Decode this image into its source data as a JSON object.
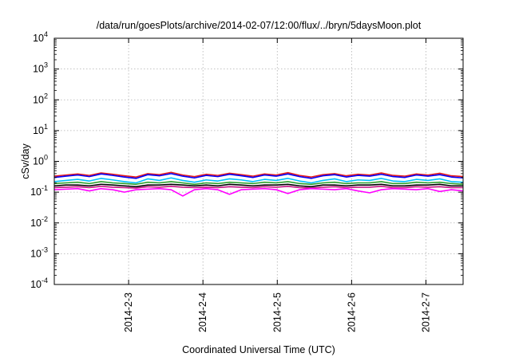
{
  "chart_data": {
    "type": "line",
    "title": "/data/run/goesPlots/archive/2014-02-07/12:00/flux/../bryn/5daysMoon.plot",
    "xlabel": "Coordinated Universal Time (UTC)",
    "ylabel": "cSv/day",
    "yscale": "log",
    "ylim": [
      0.0001,
      10000
    ],
    "yticks": [
      {
        "base": "10",
        "exp": "-4",
        "value": 0.0001
      },
      {
        "base": "10",
        "exp": "-3",
        "value": 0.001
      },
      {
        "base": "10",
        "exp": "-2",
        "value": 0.01
      },
      {
        "base": "10",
        "exp": "-1",
        "value": 0.1
      },
      {
        "base": "10",
        "exp": "0",
        "value": 1
      },
      {
        "base": "10",
        "exp": "1",
        "value": 10
      },
      {
        "base": "10",
        "exp": "2",
        "value": 100
      },
      {
        "base": "10",
        "exp": "3",
        "value": 1000
      },
      {
        "base": "10",
        "exp": "4",
        "value": 10000
      }
    ],
    "xlim": [
      "2014-02-02T00:00",
      "2014-02-07T12:00"
    ],
    "xticks": [
      {
        "label": "2014-2-3",
        "t": "2014-02-03T00:00"
      },
      {
        "label": "2014-2-4",
        "t": "2014-02-04T00:00"
      },
      {
        "label": "2014-2-5",
        "t": "2014-02-05T00:00"
      },
      {
        "label": "2014-2-6",
        "t": "2014-02-06T00:00"
      },
      {
        "label": "2014-2-7",
        "t": "2014-02-07T00:00"
      }
    ],
    "grid": true,
    "series": [
      {
        "color": "#e41a1c",
        "values": [
          0.33,
          0.36,
          0.39,
          0.35,
          0.42,
          0.38,
          0.34,
          0.31,
          0.4,
          0.37,
          0.44,
          0.36,
          0.32,
          0.38,
          0.35,
          0.41,
          0.37,
          0.33,
          0.39,
          0.36,
          0.43,
          0.35,
          0.31,
          0.37,
          0.4,
          0.34,
          0.38,
          0.36,
          0.42,
          0.35,
          0.33,
          0.39,
          0.36,
          0.41,
          0.34,
          0.32
        ]
      },
      {
        "color": "#0000ff",
        "values": [
          0.3,
          0.33,
          0.36,
          0.32,
          0.39,
          0.35,
          0.31,
          0.28,
          0.37,
          0.34,
          0.4,
          0.33,
          0.29,
          0.35,
          0.32,
          0.38,
          0.34,
          0.3,
          0.36,
          0.33,
          0.39,
          0.32,
          0.28,
          0.34,
          0.37,
          0.31,
          0.35,
          0.33,
          0.38,
          0.32,
          0.3,
          0.36,
          0.33,
          0.37,
          0.31,
          0.29
        ]
      },
      {
        "color": "#00bfff",
        "values": [
          0.22,
          0.24,
          0.26,
          0.23,
          0.28,
          0.25,
          0.22,
          0.2,
          0.27,
          0.24,
          0.29,
          0.24,
          0.21,
          0.25,
          0.23,
          0.27,
          0.25,
          0.22,
          0.26,
          0.24,
          0.28,
          0.23,
          0.2,
          0.24,
          0.27,
          0.22,
          0.25,
          0.24,
          0.28,
          0.23,
          0.22,
          0.26,
          0.24,
          0.27,
          0.22,
          0.21
        ]
      },
      {
        "color": "#2ca02c",
        "values": [
          0.19,
          0.2,
          0.21,
          0.19,
          0.22,
          0.2,
          0.19,
          0.18,
          0.21,
          0.2,
          0.22,
          0.2,
          0.18,
          0.2,
          0.19,
          0.21,
          0.2,
          0.19,
          0.21,
          0.2,
          0.22,
          0.19,
          0.18,
          0.2,
          0.21,
          0.19,
          0.2,
          0.2,
          0.22,
          0.19,
          0.19,
          0.21,
          0.2,
          0.21,
          0.19,
          0.18
        ]
      },
      {
        "color": "#000000",
        "values": [
          0.16,
          0.17,
          0.17,
          0.16,
          0.18,
          0.17,
          0.16,
          0.15,
          0.17,
          0.17,
          0.18,
          0.17,
          0.16,
          0.17,
          0.16,
          0.18,
          0.17,
          0.16,
          0.17,
          0.17,
          0.18,
          0.16,
          0.15,
          0.17,
          0.17,
          0.16,
          0.17,
          0.17,
          0.18,
          0.16,
          0.16,
          0.17,
          0.17,
          0.18,
          0.16,
          0.16
        ]
      },
      {
        "color": "#c71585",
        "values": [
          0.14,
          0.145,
          0.15,
          0.14,
          0.155,
          0.145,
          0.14,
          0.135,
          0.15,
          0.145,
          0.155,
          0.145,
          0.14,
          0.145,
          0.14,
          0.15,
          0.145,
          0.14,
          0.15,
          0.145,
          0.155,
          0.14,
          0.135,
          0.145,
          0.15,
          0.14,
          0.145,
          0.145,
          0.155,
          0.14,
          0.14,
          0.15,
          0.145,
          0.15,
          0.14,
          0.14
        ]
      },
      {
        "color": "#ff00ff",
        "values": [
          0.12,
          0.125,
          0.13,
          0.11,
          0.13,
          0.12,
          0.1,
          0.12,
          0.125,
          0.13,
          0.12,
          0.075,
          0.12,
          0.13,
          0.12,
          0.085,
          0.12,
          0.125,
          0.13,
          0.12,
          0.09,
          0.12,
          0.13,
          0.125,
          0.12,
          0.13,
          0.11,
          0.095,
          0.12,
          0.13,
          0.125,
          0.12,
          0.13,
          0.105,
          0.12,
          0.11
        ]
      }
    ]
  }
}
